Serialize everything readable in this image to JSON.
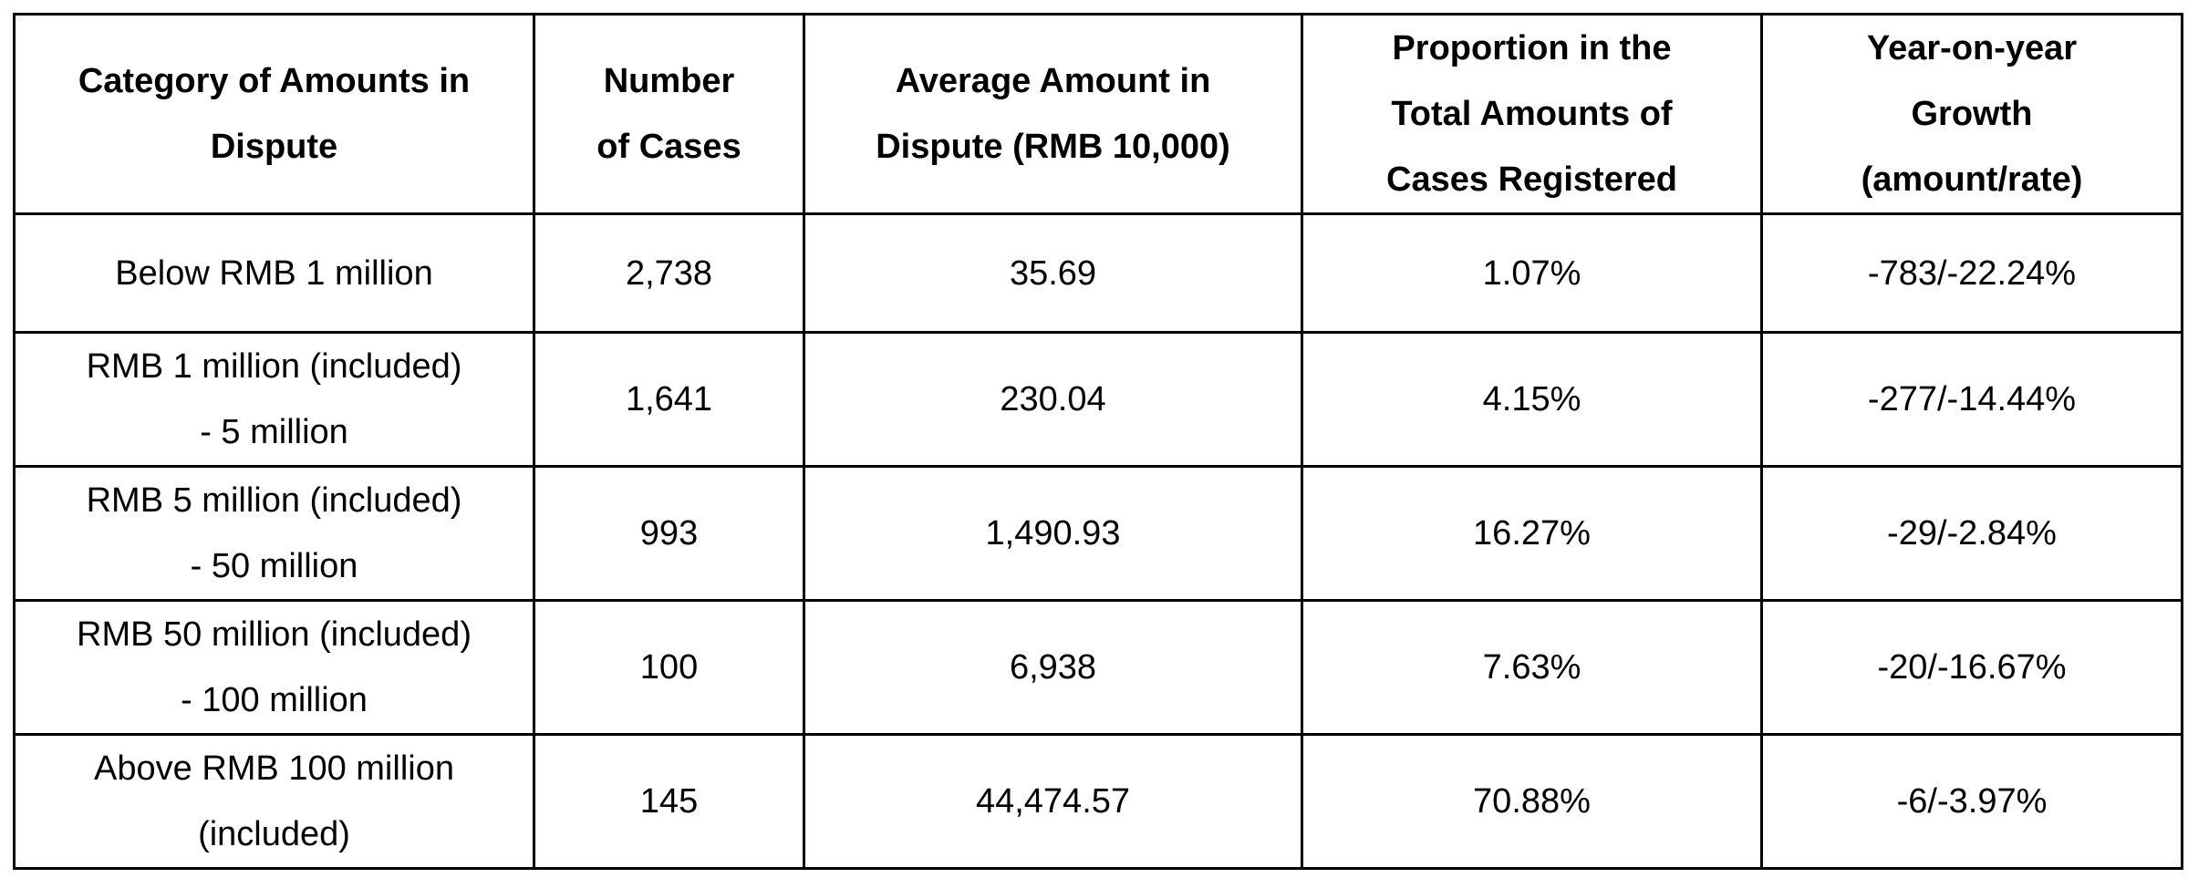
{
  "table": {
    "headers": [
      "Category of Amounts in\nDispute",
      "Number\nof Cases",
      "Average Amount in\nDispute (RMB 10,000)",
      "Proportion in the\nTotal Amounts of\nCases Registered",
      "Year-on-year\nGrowth\n(amount/rate)"
    ],
    "rows": [
      [
        "Below RMB 1 million",
        "2,738",
        "35.69",
        "1.07%",
        "-783/-22.24%"
      ],
      [
        "RMB 1 million (included)\n- 5 million",
        "1,641",
        "230.04",
        "4.15%",
        "-277/-14.44%"
      ],
      [
        "RMB 5 million (included)\n- 50 million",
        "993",
        "1,490.93",
        "16.27%",
        "-29/-2.84%"
      ],
      [
        "RMB 50 million (included)\n- 100 million",
        "100",
        "6,938",
        "7.63%",
        "-20/-16.67%"
      ],
      [
        "Above RMB 100 million\n(included)",
        "145",
        "44,474.57",
        "70.88%",
        "-6/-3.97%"
      ]
    ]
  }
}
